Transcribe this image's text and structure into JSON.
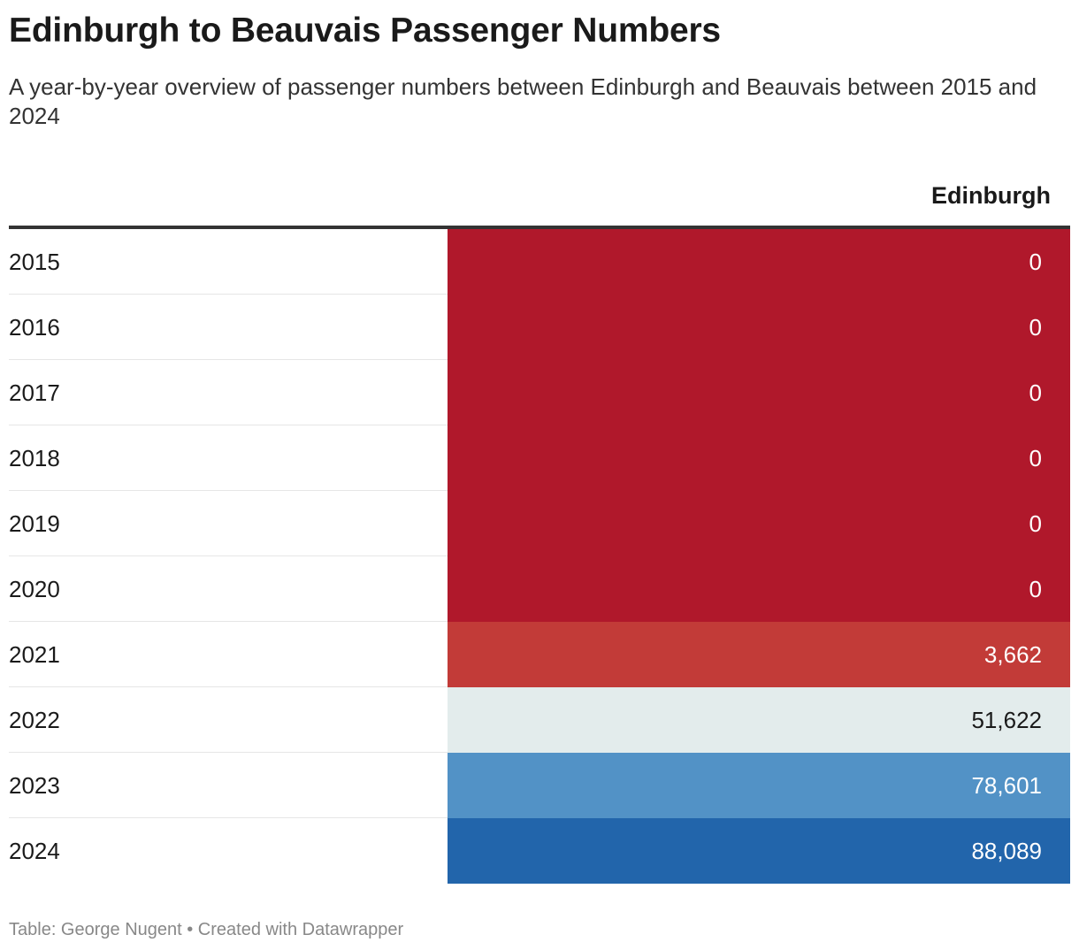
{
  "title": "Edinburgh to Beauvais Passenger Numbers",
  "subtitle": "A year-by-year overview of passenger numbers between Edinburgh and Beauvais between 2015 and 2024",
  "footer": "Table: George Nugent • Created with Datawrapper",
  "chart_data": {
    "type": "table",
    "title": "Edinburgh to Beauvais Passenger Numbers",
    "columns": [
      "",
      "Edinburgh"
    ],
    "column_header": "Edinburgh",
    "rows": [
      {
        "year": "2015",
        "value": 0,
        "display": "0",
        "color": "#b0182b",
        "text_color": "#ffffff"
      },
      {
        "year": "2016",
        "value": 0,
        "display": "0",
        "color": "#b0182b",
        "text_color": "#ffffff"
      },
      {
        "year": "2017",
        "value": 0,
        "display": "0",
        "color": "#b0182b",
        "text_color": "#ffffff"
      },
      {
        "year": "2018",
        "value": 0,
        "display": "0",
        "color": "#b0182b",
        "text_color": "#ffffff"
      },
      {
        "year": "2019",
        "value": 0,
        "display": "0",
        "color": "#b0182b",
        "text_color": "#ffffff"
      },
      {
        "year": "2020",
        "value": 0,
        "display": "0",
        "color": "#b0182b",
        "text_color": "#ffffff"
      },
      {
        "year": "2021",
        "value": 3662,
        "display": "3,662",
        "color": "#c23b38",
        "text_color": "#ffffff"
      },
      {
        "year": "2022",
        "value": 51622,
        "display": "51,622",
        "color": "#e3ecec",
        "text_color": "#1a1a1a"
      },
      {
        "year": "2023",
        "value": 78601,
        "display": "78,601",
        "color": "#5292c6",
        "text_color": "#ffffff"
      },
      {
        "year": "2024",
        "value": 88089,
        "display": "88,089",
        "color": "#2265ab",
        "text_color": "#ffffff"
      }
    ]
  }
}
